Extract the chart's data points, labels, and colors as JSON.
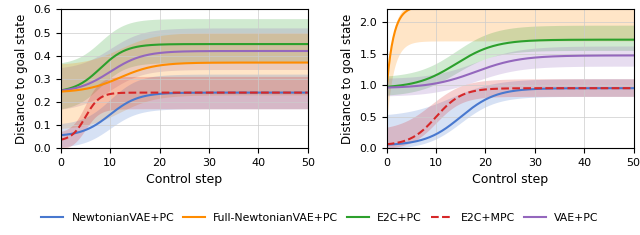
{
  "colors": {
    "newtonian": "#4878cf",
    "full_newtonian": "#ff8c00",
    "e2c": "#2ca02c",
    "e2c_mpc": "#d62728",
    "vae": "#9467bd"
  },
  "legend_labels": [
    "NewtonianVAE+PC",
    "Full-NewtonianVAE+PC",
    "E2C+PC",
    "E2C+MPC",
    "VAE+PC"
  ],
  "xlabel": "Control step",
  "ylabel": "Distance to goal state",
  "left_ylim": [
    0.0,
    0.6
  ],
  "right_ylim": [
    0.0,
    2.2
  ],
  "xlim": [
    0,
    50
  ]
}
